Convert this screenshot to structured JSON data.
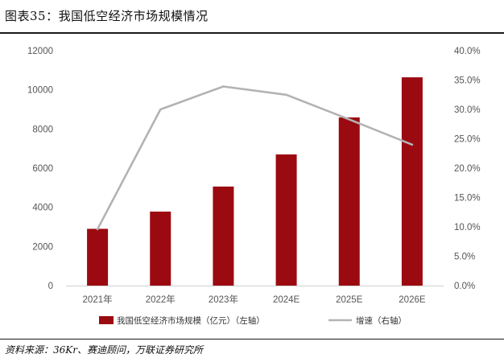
{
  "header": {
    "title": "图表35：我国低空经济市场规模情况"
  },
  "footer": {
    "source": "资料来源：36Kr、赛迪顾问，万联证券研究所"
  },
  "chart_data": {
    "type": "bar",
    "categories": [
      "2021年",
      "2022年",
      "2023年",
      "2024E",
      "2025E",
      "2026E"
    ],
    "series": [
      {
        "name": "我国低空经济市场规模（亿元）（左轴）",
        "type": "bar",
        "axis": "left",
        "values": [
          2900,
          3780,
          5060,
          6700,
          8590,
          10640
        ],
        "color": "#9b0a10"
      },
      {
        "name": "增速（右轴）",
        "type": "line",
        "axis": "right",
        "values": [
          9.6,
          30.0,
          33.9,
          32.5,
          28.3,
          24.0
        ],
        "color": "#b3b3b3"
      }
    ],
    "y_left": {
      "ylim": [
        0,
        12000
      ],
      "ticks": [
        "0",
        "2000",
        "4000",
        "6000",
        "8000",
        "10000",
        "12000"
      ]
    },
    "y_right": {
      "ylim": [
        0,
        40
      ],
      "ticks": [
        "0.0%",
        "5.0%",
        "10.0%",
        "15.0%",
        "20.0%",
        "25.0%",
        "30.0%",
        "35.0%",
        "40.0%"
      ]
    },
    "grid": false,
    "legend_position": "bottom"
  }
}
